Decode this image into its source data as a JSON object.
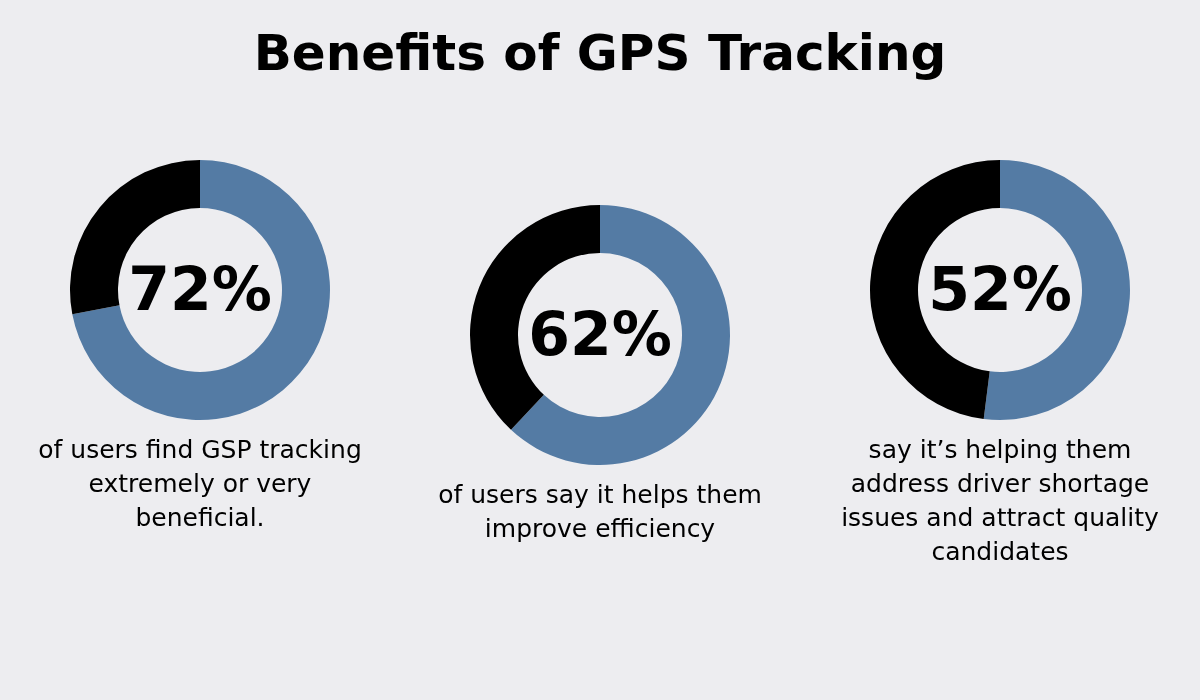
{
  "chart_data": [
    {
      "type": "donut",
      "title": "Benefits of GPS Tracking",
      "categories": [
        null,
        null
      ],
      "values": [
        72,
        28
      ],
      "colors": [
        "#547ba4",
        "#000000"
      ],
      "annotations": [
        "72%",
        "of users find GSP tracking extremely or very beneficial."
      ]
    },
    {
      "type": "donut",
      "categories": [
        null,
        null
      ],
      "values": [
        62,
        38
      ],
      "colors": [
        "#547ba4",
        "#000000"
      ],
      "annotations": [
        "62%",
        "of users say it helps them improve efficiency"
      ]
    },
    {
      "type": "donut",
      "categories": [
        null,
        null
      ],
      "values": [
        52,
        48
      ],
      "colors": [
        "#547ba4",
        "#000000"
      ],
      "annotations": [
        "52%",
        "say it’s helping them address driver shortage issues and attract quality candidates"
      ]
    }
  ]
}
